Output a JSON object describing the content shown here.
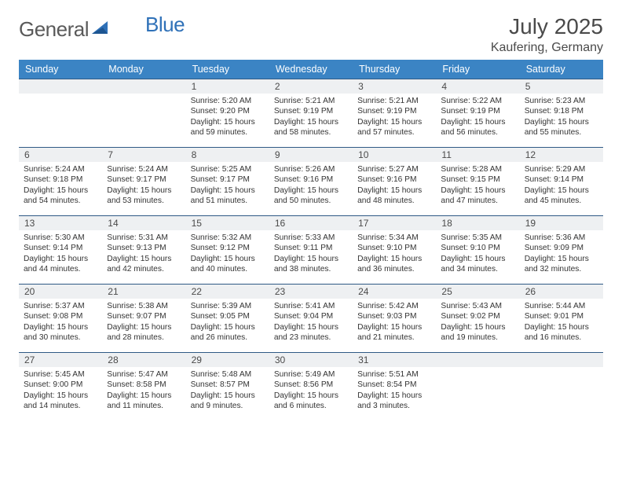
{
  "brand": {
    "name_a": "General",
    "name_b": "Blue"
  },
  "title": "July 2025",
  "location": "Kaufering, Germany",
  "columns": [
    "Sunday",
    "Monday",
    "Tuesday",
    "Wednesday",
    "Thursday",
    "Friday",
    "Saturday"
  ],
  "colors": {
    "header_bg": "#3b84c4",
    "header_text": "#ffffff",
    "rule": "#2f5a85",
    "daynum_bg": "#eef0f2",
    "body_text": "#333333",
    "title_text": "#4a4a4a"
  },
  "weeks": [
    [
      null,
      null,
      {
        "n": "1",
        "sr": "Sunrise: 5:20 AM",
        "ss": "Sunset: 9:20 PM",
        "dl": "Daylight: 15 hours and 59 minutes."
      },
      {
        "n": "2",
        "sr": "Sunrise: 5:21 AM",
        "ss": "Sunset: 9:19 PM",
        "dl": "Daylight: 15 hours and 58 minutes."
      },
      {
        "n": "3",
        "sr": "Sunrise: 5:21 AM",
        "ss": "Sunset: 9:19 PM",
        "dl": "Daylight: 15 hours and 57 minutes."
      },
      {
        "n": "4",
        "sr": "Sunrise: 5:22 AM",
        "ss": "Sunset: 9:19 PM",
        "dl": "Daylight: 15 hours and 56 minutes."
      },
      {
        "n": "5",
        "sr": "Sunrise: 5:23 AM",
        "ss": "Sunset: 9:18 PM",
        "dl": "Daylight: 15 hours and 55 minutes."
      }
    ],
    [
      {
        "n": "6",
        "sr": "Sunrise: 5:24 AM",
        "ss": "Sunset: 9:18 PM",
        "dl": "Daylight: 15 hours and 54 minutes."
      },
      {
        "n": "7",
        "sr": "Sunrise: 5:24 AM",
        "ss": "Sunset: 9:17 PM",
        "dl": "Daylight: 15 hours and 53 minutes."
      },
      {
        "n": "8",
        "sr": "Sunrise: 5:25 AM",
        "ss": "Sunset: 9:17 PM",
        "dl": "Daylight: 15 hours and 51 minutes."
      },
      {
        "n": "9",
        "sr": "Sunrise: 5:26 AM",
        "ss": "Sunset: 9:16 PM",
        "dl": "Daylight: 15 hours and 50 minutes."
      },
      {
        "n": "10",
        "sr": "Sunrise: 5:27 AM",
        "ss": "Sunset: 9:16 PM",
        "dl": "Daylight: 15 hours and 48 minutes."
      },
      {
        "n": "11",
        "sr": "Sunrise: 5:28 AM",
        "ss": "Sunset: 9:15 PM",
        "dl": "Daylight: 15 hours and 47 minutes."
      },
      {
        "n": "12",
        "sr": "Sunrise: 5:29 AM",
        "ss": "Sunset: 9:14 PM",
        "dl": "Daylight: 15 hours and 45 minutes."
      }
    ],
    [
      {
        "n": "13",
        "sr": "Sunrise: 5:30 AM",
        "ss": "Sunset: 9:14 PM",
        "dl": "Daylight: 15 hours and 44 minutes."
      },
      {
        "n": "14",
        "sr": "Sunrise: 5:31 AM",
        "ss": "Sunset: 9:13 PM",
        "dl": "Daylight: 15 hours and 42 minutes."
      },
      {
        "n": "15",
        "sr": "Sunrise: 5:32 AM",
        "ss": "Sunset: 9:12 PM",
        "dl": "Daylight: 15 hours and 40 minutes."
      },
      {
        "n": "16",
        "sr": "Sunrise: 5:33 AM",
        "ss": "Sunset: 9:11 PM",
        "dl": "Daylight: 15 hours and 38 minutes."
      },
      {
        "n": "17",
        "sr": "Sunrise: 5:34 AM",
        "ss": "Sunset: 9:10 PM",
        "dl": "Daylight: 15 hours and 36 minutes."
      },
      {
        "n": "18",
        "sr": "Sunrise: 5:35 AM",
        "ss": "Sunset: 9:10 PM",
        "dl": "Daylight: 15 hours and 34 minutes."
      },
      {
        "n": "19",
        "sr": "Sunrise: 5:36 AM",
        "ss": "Sunset: 9:09 PM",
        "dl": "Daylight: 15 hours and 32 minutes."
      }
    ],
    [
      {
        "n": "20",
        "sr": "Sunrise: 5:37 AM",
        "ss": "Sunset: 9:08 PM",
        "dl": "Daylight: 15 hours and 30 minutes."
      },
      {
        "n": "21",
        "sr": "Sunrise: 5:38 AM",
        "ss": "Sunset: 9:07 PM",
        "dl": "Daylight: 15 hours and 28 minutes."
      },
      {
        "n": "22",
        "sr": "Sunrise: 5:39 AM",
        "ss": "Sunset: 9:05 PM",
        "dl": "Daylight: 15 hours and 26 minutes."
      },
      {
        "n": "23",
        "sr": "Sunrise: 5:41 AM",
        "ss": "Sunset: 9:04 PM",
        "dl": "Daylight: 15 hours and 23 minutes."
      },
      {
        "n": "24",
        "sr": "Sunrise: 5:42 AM",
        "ss": "Sunset: 9:03 PM",
        "dl": "Daylight: 15 hours and 21 minutes."
      },
      {
        "n": "25",
        "sr": "Sunrise: 5:43 AM",
        "ss": "Sunset: 9:02 PM",
        "dl": "Daylight: 15 hours and 19 minutes."
      },
      {
        "n": "26",
        "sr": "Sunrise: 5:44 AM",
        "ss": "Sunset: 9:01 PM",
        "dl": "Daylight: 15 hours and 16 minutes."
      }
    ],
    [
      {
        "n": "27",
        "sr": "Sunrise: 5:45 AM",
        "ss": "Sunset: 9:00 PM",
        "dl": "Daylight: 15 hours and 14 minutes."
      },
      {
        "n": "28",
        "sr": "Sunrise: 5:47 AM",
        "ss": "Sunset: 8:58 PM",
        "dl": "Daylight: 15 hours and 11 minutes."
      },
      {
        "n": "29",
        "sr": "Sunrise: 5:48 AM",
        "ss": "Sunset: 8:57 PM",
        "dl": "Daylight: 15 hours and 9 minutes."
      },
      {
        "n": "30",
        "sr": "Sunrise: 5:49 AM",
        "ss": "Sunset: 8:56 PM",
        "dl": "Daylight: 15 hours and 6 minutes."
      },
      {
        "n": "31",
        "sr": "Sunrise: 5:51 AM",
        "ss": "Sunset: 8:54 PM",
        "dl": "Daylight: 15 hours and 3 minutes."
      },
      null,
      null
    ]
  ]
}
